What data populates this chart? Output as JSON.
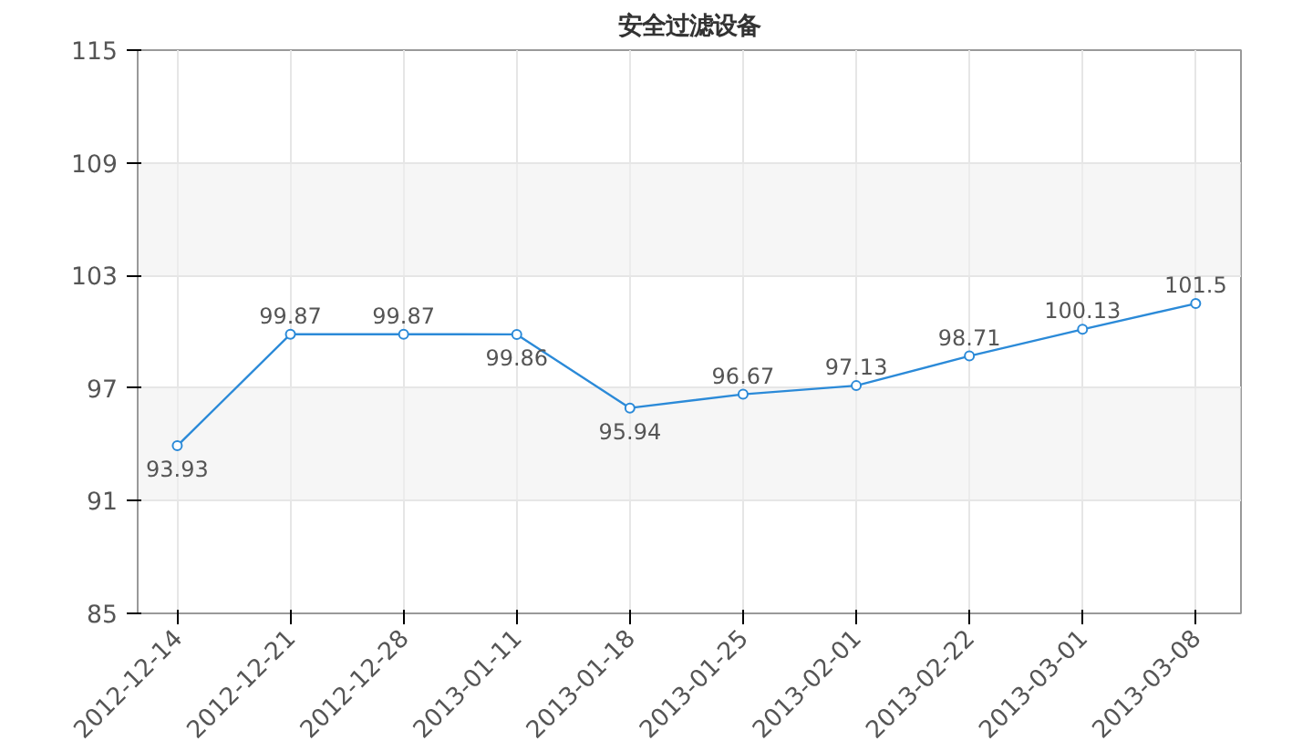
{
  "chart_data": {
    "type": "line",
    "title": "安全过滤设备",
    "categories": [
      "2012-12-14",
      "2012-12-21",
      "2012-12-28",
      "2013-01-11",
      "2013-01-18",
      "2013-01-25",
      "2013-02-01",
      "2013-02-22",
      "2013-03-01",
      "2013-03-08"
    ],
    "series": [
      {
        "color": "#2b8ad8",
        "values": [
          93.93,
          99.87,
          99.87,
          99.86,
          95.94,
          96.67,
          97.13,
          98.71,
          100.13,
          101.5
        ]
      }
    ],
    "value_labels": [
      "93.93",
      "99.87",
      "99.87",
      "99.86",
      "95.94",
      "96.67",
      "97.13",
      "98.71",
      "100.13",
      "101.5"
    ],
    "data_labels": true,
    "ylim": [
      85,
      115
    ],
    "yticks": [
      85,
      91,
      97,
      103,
      109,
      115
    ],
    "grid": true,
    "marker": "circle",
    "line_style": "solid"
  }
}
